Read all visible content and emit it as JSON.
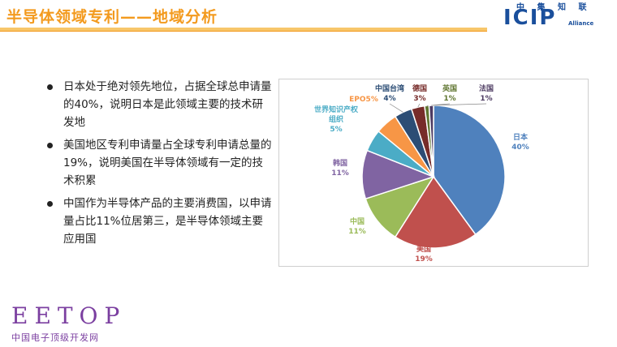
{
  "header": {
    "title": "半导体领域专利——地域分析",
    "logo": {
      "cn": "中 集 知 联",
      "main_left": "ICIP",
      "sub": "Alliance"
    }
  },
  "bullets": [
    "日本处于绝对领先地位，占据全球总申请量的40%，说明日本是此领域主要的技术研发地",
    "美国地区专利申请量占全球专利申请总量的19%，说明美国在半导体领域有一定的技术积累",
    "中国作为半导体产品的主要消费国，以申请量占比11%位居第三，是半导体领域主要应用国"
  ],
  "chart_data": {
    "type": "pie",
    "title": "",
    "slices": [
      {
        "label": "日本",
        "value": 40,
        "pct": "40%",
        "color": "#4f81bd"
      },
      {
        "label": "美国",
        "value": 19,
        "pct": "19%",
        "color": "#c0504d"
      },
      {
        "label": "中国",
        "value": 11,
        "pct": "11%",
        "color": "#9bbb59"
      },
      {
        "label": "韩国",
        "value": 11,
        "pct": "11%",
        "color": "#8064a2"
      },
      {
        "label": "世界知识产权组织",
        "value": 5,
        "pct": "5%",
        "color": "#4bacc6"
      },
      {
        "label": "EPO",
        "value": 5,
        "pct": "5%",
        "color": "#f79646"
      },
      {
        "label": "中国台湾",
        "value": 4,
        "pct": "4%",
        "color": "#2c4d75"
      },
      {
        "label": "德国",
        "value": 3,
        "pct": "3%",
        "color": "#772c2a"
      },
      {
        "label": "英国",
        "value": 1,
        "pct": "1%",
        "color": "#5f7530"
      },
      {
        "label": "法国",
        "value": 1,
        "pct": "1%",
        "color": "#4d3b62"
      }
    ]
  },
  "footer": {
    "brand": "EETOP",
    "sub": "中国电子顶级开发网"
  }
}
